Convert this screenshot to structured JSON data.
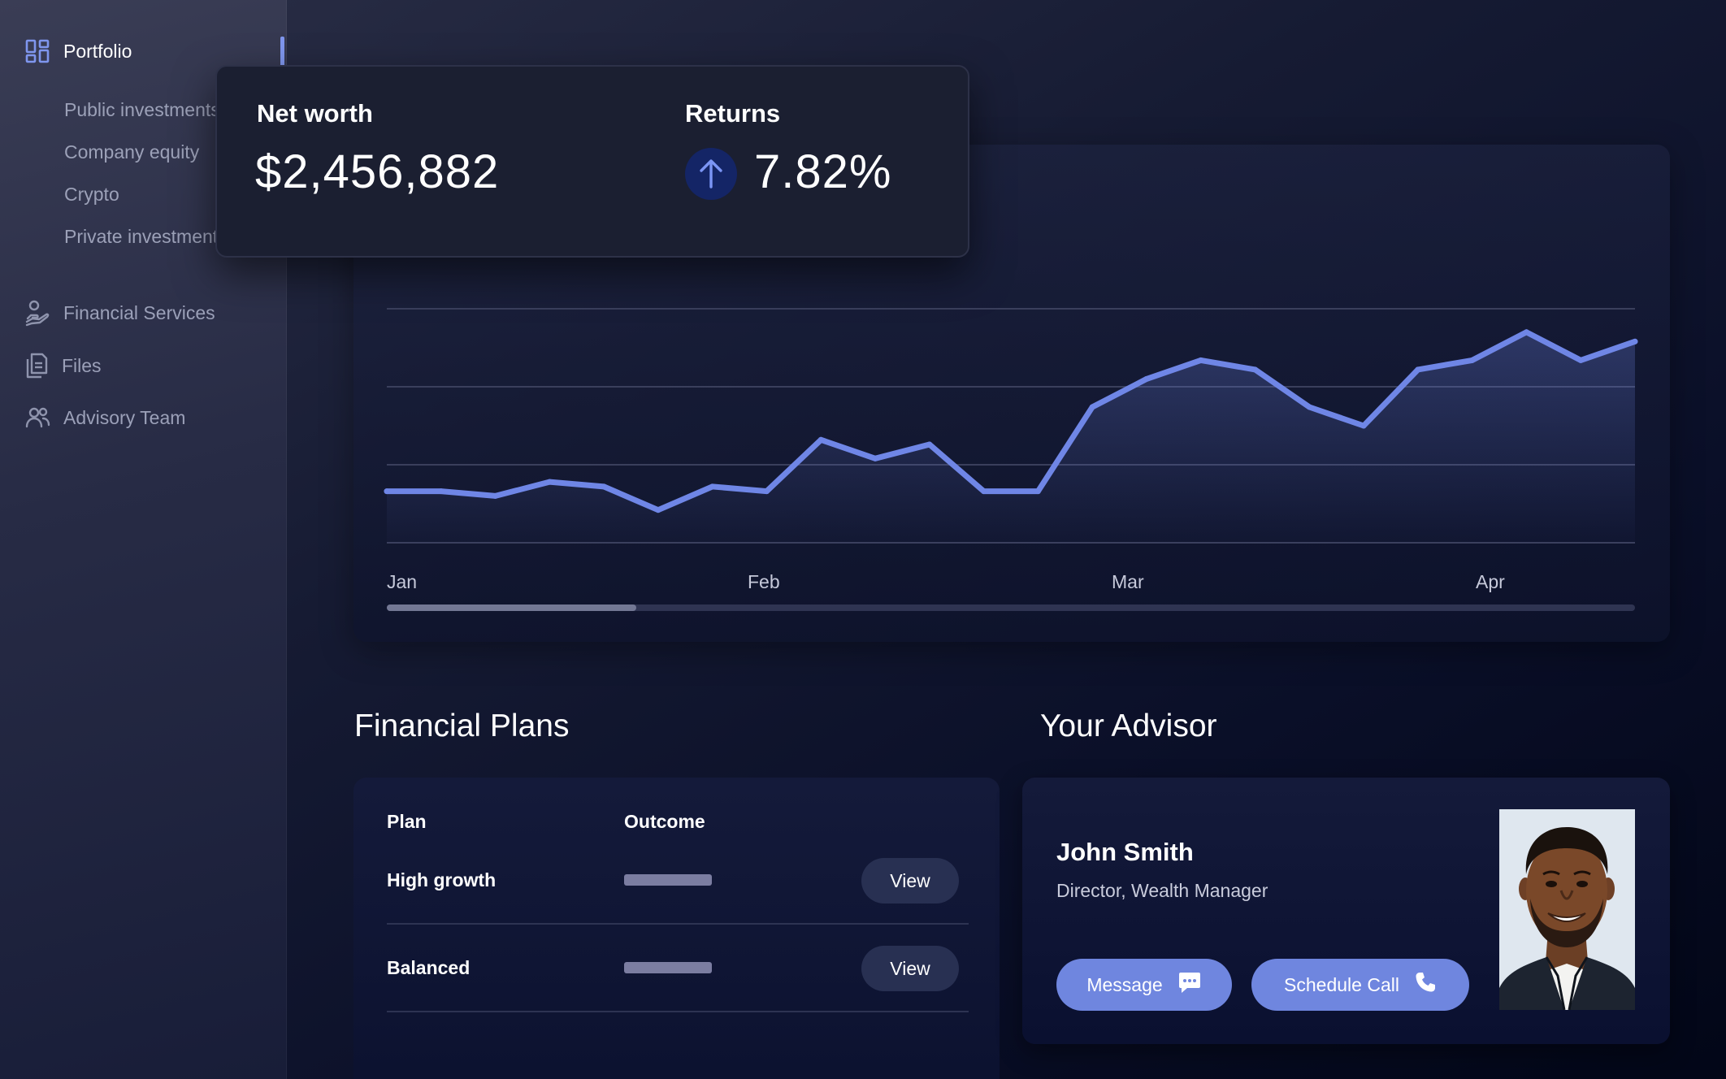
{
  "sidebar": {
    "portfolio": {
      "label": "Portfolio",
      "icon": "dashboard-icon"
    },
    "sub_items": [
      "Public investments",
      "Company equity",
      "Crypto",
      "Private investments"
    ],
    "items": [
      {
        "label": "Financial Services",
        "icon": "hand-coin-icon"
      },
      {
        "label": "Files",
        "icon": "files-icon"
      },
      {
        "label": "Advisory Team",
        "icon": "team-icon"
      }
    ]
  },
  "summary": {
    "net_worth_label": "Net worth",
    "net_worth_value": "$2,456,882",
    "returns_label": "Returns",
    "returns_value": "7.82%",
    "returns_icon": "arrow-up-icon"
  },
  "chart_data": {
    "type": "area",
    "x_tick_labels": [
      "Jan",
      "Feb",
      "Mar",
      "Apr"
    ],
    "series": [
      {
        "values": [
          2.1,
          2.1,
          2.0,
          2.3,
          2.2,
          1.7,
          2.2,
          2.1,
          3.2,
          2.8,
          3.1,
          2.1,
          2.1,
          3.9,
          4.5,
          4.9,
          4.7,
          3.9,
          3.5,
          4.7,
          4.9,
          5.5,
          4.9,
          5.3
        ]
      }
    ],
    "ylim": [
      1,
      6
    ],
    "grid": true,
    "scroll_position": 0.2,
    "colors": {
      "line": "#6f86e6",
      "grid": "#3a3f5c"
    }
  },
  "plans": {
    "title": "Financial Plans",
    "columns": [
      "Plan",
      "Outcome"
    ],
    "rows": [
      {
        "name": "High growth",
        "action": "View"
      },
      {
        "name": "Balanced",
        "action": "View"
      }
    ]
  },
  "advisor": {
    "title": "Your Advisor",
    "name": "John Smith",
    "role": "Director, Wealth Manager",
    "message_label": "Message",
    "message_icon": "chat-icon",
    "schedule_label": "Schedule Call",
    "schedule_icon": "phone-icon",
    "photo": "advisor-photo"
  }
}
